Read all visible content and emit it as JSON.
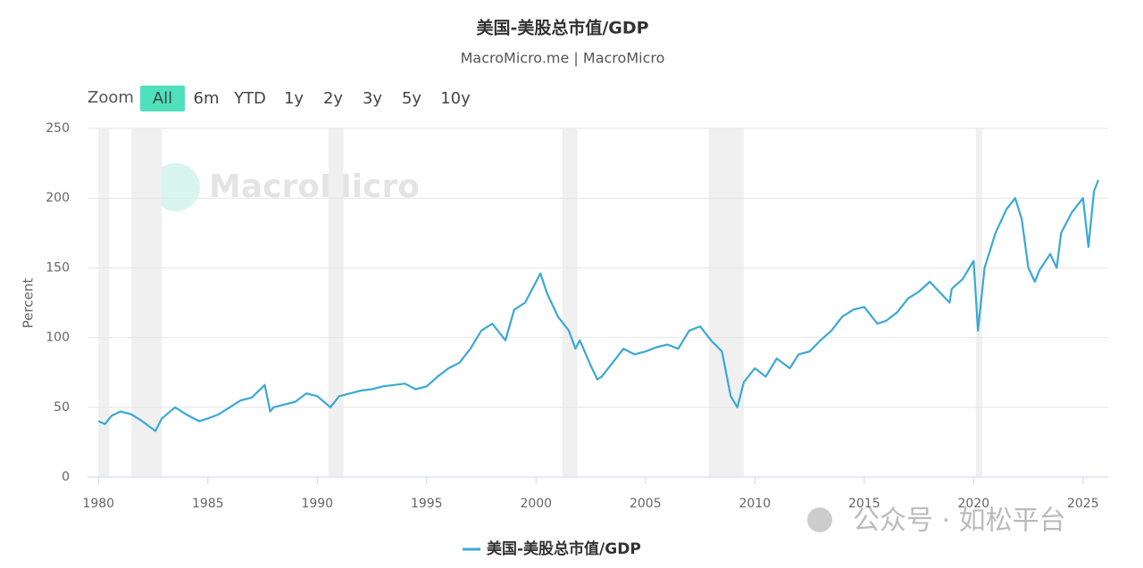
{
  "chart_data": {
    "type": "line",
    "title": "美国-美股总市值/GDP",
    "subtitle": "MacroMicro.me | MacroMicro",
    "y_label": "Percent",
    "watermark": "MacroMicro",
    "footer_watermark": "公众号 · 如松平台",
    "range_selector": {
      "label": "Zoom",
      "buttons": [
        "All",
        "6m",
        "YTD",
        "1y",
        "2y",
        "3y",
        "5y",
        "10y"
      ],
      "selected": 0
    },
    "x": [
      1980,
      1980.3,
      1980.6,
      1981,
      1981.5,
      1982,
      1982.6,
      1982.9,
      1983.5,
      1984,
      1984.6,
      1985,
      1985.5,
      1986,
      1986.5,
      1987,
      1987.6,
      1987.85,
      1988,
      1988.5,
      1989,
      1989.5,
      1990,
      1990.6,
      1991,
      1991.5,
      1992,
      1992.5,
      1993,
      1993.5,
      1994,
      1994.5,
      1995,
      1995.5,
      1996,
      1996.5,
      1997,
      1997.5,
      1998,
      1998.6,
      1999,
      1999.5,
      2000,
      2000.2,
      2000.5,
      2001,
      2001.5,
      2001.8,
      2002,
      2002.5,
      2002.8,
      2003,
      2003.5,
      2004,
      2004.5,
      2005,
      2005.5,
      2006,
      2006.5,
      2007,
      2007.5,
      2008,
      2008.5,
      2008.9,
      2009.2,
      2009.5,
      2010,
      2010.5,
      2011,
      2011.6,
      2012,
      2012.5,
      2013,
      2013.5,
      2014,
      2014.5,
      2015,
      2015.6,
      2016,
      2016.5,
      2017,
      2017.5,
      2018,
      2018.9,
      2019,
      2019.5,
      2020,
      2020.2,
      2020.5,
      2021,
      2021.5,
      2021.9,
      2022.2,
      2022.5,
      2022.8,
      2023,
      2023.5,
      2023.8,
      2024,
      2024.5,
      2025,
      2025.25,
      2025.5,
      2025.7
    ],
    "series": [
      {
        "name": "美国-美股总市值/GDP",
        "color": "#3aa8d6",
        "values": [
          40,
          38,
          44,
          47,
          45,
          40,
          33,
          42,
          50,
          45,
          40,
          42,
          45,
          50,
          55,
          57,
          66,
          47,
          50,
          52,
          54,
          60,
          58,
          50,
          58,
          60,
          62,
          63,
          65,
          66,
          67,
          63,
          65,
          72,
          78,
          82,
          92,
          105,
          110,
          98,
          120,
          125,
          140,
          146,
          132,
          115,
          105,
          92,
          98,
          80,
          70,
          72,
          82,
          92,
          88,
          90,
          93,
          95,
          92,
          105,
          108,
          98,
          90,
          58,
          50,
          68,
          78,
          72,
          85,
          78,
          88,
          90,
          98,
          105,
          115,
          120,
          122,
          110,
          112,
          118,
          128,
          133,
          140,
          125,
          135,
          142,
          155,
          105,
          150,
          175,
          192,
          200,
          185,
          150,
          140,
          148,
          160,
          150,
          175,
          190,
          200,
          165,
          205,
          213
        ]
      }
    ],
    "bands": [
      [
        1980.0,
        1980.5
      ],
      [
        1981.5,
        1982.9
      ],
      [
        1990.5,
        1991.2
      ],
      [
        2001.2,
        2001.9
      ],
      [
        2007.9,
        2009.5
      ],
      [
        2020.1,
        2020.4
      ]
    ],
    "band_color": "#f0f0f0",
    "xlim": [
      1979.5,
      2026.15
    ],
    "ylim": [
      0,
      250
    ],
    "xticks": [
      1980,
      1985,
      1990,
      1995,
      2000,
      2005,
      2010,
      2015,
      2020,
      2025
    ],
    "yticks": [
      0,
      50,
      100,
      150,
      200,
      250
    ],
    "grid": true,
    "legend": "bottom"
  }
}
